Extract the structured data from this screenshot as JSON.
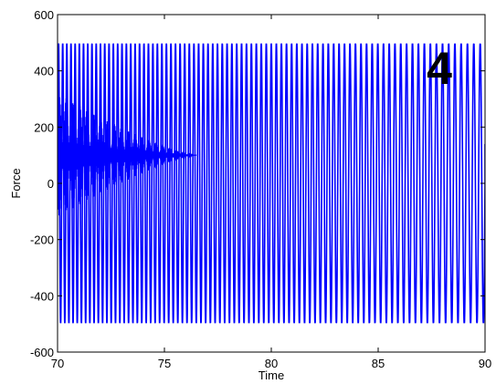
{
  "chart_data": {
    "type": "line",
    "title": "",
    "xlabel": "Time",
    "ylabel": "Force",
    "xlim": [
      70,
      90
    ],
    "ylim": [
      -600,
      600
    ],
    "xticks": [
      "70",
      "75",
      "80",
      "85",
      "90"
    ],
    "yticks": [
      "-600",
      "-400",
      "-200",
      "0",
      "200",
      "400",
      "600"
    ],
    "grid": false,
    "legend": "none",
    "annotation": "4",
    "series": [
      {
        "color": "#0000ff",
        "description_values": {
          "amplitude_upper": 495,
          "amplitude_lower": -495,
          "frequency_start_per_unit_time": 5.2,
          "frequency_end_per_unit_time": 3.3,
          "inner_band_center": 100,
          "inner_band_halfwidth_start": 220,
          "inner_band_decay_end_time": 76.5,
          "end_value": 140
        }
      }
    ]
  }
}
